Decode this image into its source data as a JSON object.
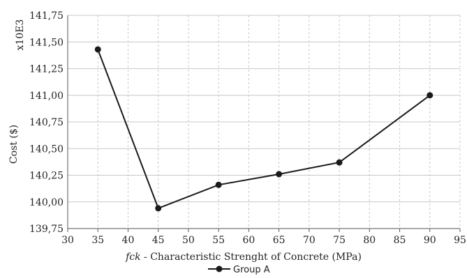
{
  "chart_data": {
    "type": "line",
    "x": [
      35,
      45,
      55,
      65,
      75,
      90
    ],
    "series": [
      {
        "name": "Group A",
        "values": [
          141.43,
          139.94,
          140.16,
          140.26,
          140.37,
          141.0
        ]
      }
    ],
    "xlabel_prefix": "fck",
    "xlabel": " - Characteristic Strenght of  Concrete (MPa)",
    "ylabel": "Cost ($)",
    "y_multiplier": "x10E3",
    "xlim": [
      30,
      95
    ],
    "ylim": [
      139.75,
      141.75
    ],
    "xticks": [
      "30",
      "35",
      "40",
      "45",
      "50",
      "55",
      "60",
      "65",
      "70",
      "75",
      "80",
      "85",
      "90",
      "95"
    ],
    "yticks": [
      "139,75",
      "140,00",
      "140,25",
      "140,50",
      "140,75",
      "141,00",
      "141,25",
      "141,50",
      "141,75"
    ],
    "grid": true,
    "legend_position": "bottom",
    "colors": {
      "line": "#1a1a1a",
      "grid": "#c8c8c8"
    }
  }
}
